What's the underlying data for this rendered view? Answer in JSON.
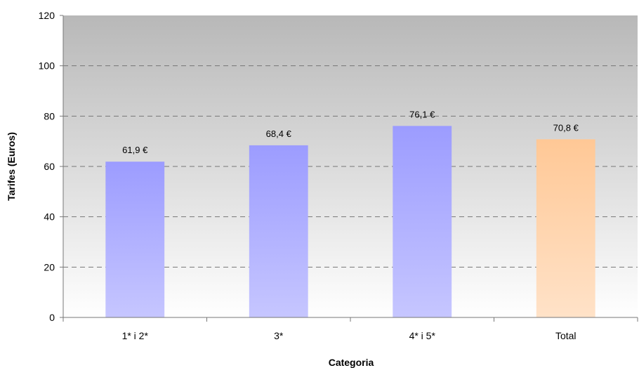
{
  "chart_data": {
    "type": "bar",
    "categories": [
      "1* i 2*",
      "3*",
      "4* i 5*",
      "Total"
    ],
    "values": [
      61.9,
      68.4,
      76.1,
      70.8
    ],
    "value_labels": [
      "61,9 €",
      "68,4 €",
      "76,1 €",
      "70,8 €"
    ],
    "xlabel": "Categoria",
    "ylabel": "Tarifes (Euros)",
    "ylim": [
      0,
      120
    ],
    "yticks": [
      0,
      20,
      40,
      60,
      80,
      100,
      120
    ],
    "grid": true,
    "bar_colors": [
      "#9c9cff",
      "#9c9cff",
      "#9c9cff",
      "#ffc896"
    ],
    "bar_colors_bottom": [
      "#c6c6ff",
      "#c6c6ff",
      "#c6c6ff",
      "#ffe2c8"
    ],
    "plot_background_top": "#b8b8b8",
    "plot_background_bottom": "#ffffff"
  }
}
